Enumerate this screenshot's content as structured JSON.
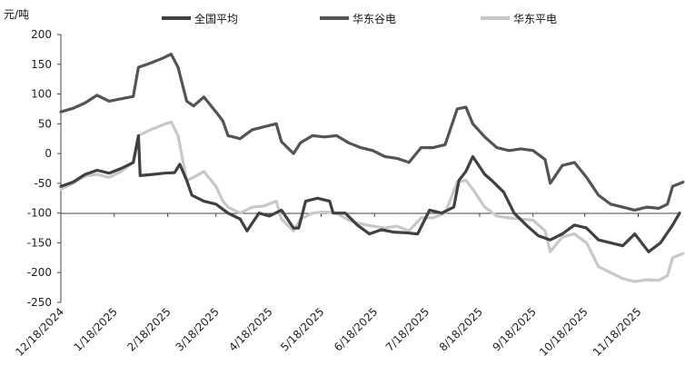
{
  "chart_data": {
    "type": "line",
    "title": "",
    "ylabel": "元/吨",
    "xlabel": "",
    "ylim": [
      -250,
      200
    ],
    "yticks": [
      200,
      150,
      100,
      50,
      0,
      -50,
      -100,
      -150,
      -200,
      -250
    ],
    "xticks": [
      "12/18/2024",
      "1/18/2025",
      "2/18/2025",
      "3/18/2025",
      "4/18/2025",
      "5/18/2025",
      "6/18/2025",
      "7/18/2025",
      "8/18/2025",
      "9/18/2025",
      "10/18/2025",
      "11/18/2025"
    ],
    "legend": {
      "position": "top"
    },
    "grid": false,
    "series": [
      {
        "name": "全国平均",
        "color": "#404040",
        "points": [
          [
            "12/18/2024",
            -55
          ],
          [
            "12/25/2024",
            -48
          ],
          [
            "1/1/2025",
            -35
          ],
          [
            "1/8/2025",
            -28
          ],
          [
            "1/15/2025",
            -33
          ],
          [
            "1/22/2025",
            -25
          ],
          [
            "1/29/2025",
            -15
          ],
          [
            "2/1/2025",
            30
          ],
          [
            "2/2/2025",
            -37
          ],
          [
            "2/9/2025",
            -35
          ],
          [
            "2/16/2025",
            -33
          ],
          [
            "2/22/2025",
            -32
          ],
          [
            "2/25/2025",
            -18
          ],
          [
            "3/1/2025",
            -45
          ],
          [
            "3/4/2025",
            -70
          ],
          [
            "3/11/2025",
            -80
          ],
          [
            "3/18/2025",
            -85
          ],
          [
            "3/25/2025",
            -100
          ],
          [
            "4/1/2025",
            -110
          ],
          [
            "4/5/2025",
            -130
          ],
          [
            "4/12/2025",
            -100
          ],
          [
            "4/18/2025",
            -105
          ],
          [
            "4/25/2025",
            -95
          ],
          [
            "5/2/2025",
            -125
          ],
          [
            "5/5/2025",
            -125
          ],
          [
            "5/9/2025",
            -80
          ],
          [
            "5/16/2025",
            -75
          ],
          [
            "5/23/2025",
            -80
          ],
          [
            "5/25/2025",
            -100
          ],
          [
            "6/1/2025",
            -100
          ],
          [
            "6/8/2025",
            -120
          ],
          [
            "6/15/2025",
            -135
          ],
          [
            "6/22/2025",
            -128
          ],
          [
            "6/29/2025",
            -132
          ],
          [
            "7/6/2025",
            -133
          ],
          [
            "7/13/2025",
            -135
          ],
          [
            "7/20/2025",
            -95
          ],
          [
            "7/27/2025",
            -100
          ],
          [
            "8/3/2025",
            -90
          ],
          [
            "8/6/2025",
            -45
          ],
          [
            "8/10/2025",
            -30
          ],
          [
            "8/14/2025",
            -5
          ],
          [
            "8/21/2025",
            -35
          ],
          [
            "8/25/2025",
            -45
          ],
          [
            "9/1/2025",
            -65
          ],
          [
            "9/7/2025",
            -100
          ],
          [
            "9/14/2025",
            -120
          ],
          [
            "9/21/2025",
            -138
          ],
          [
            "9/28/2025",
            -145
          ],
          [
            "10/5/2025",
            -135
          ],
          [
            "10/12/2025",
            -120
          ],
          [
            "10/19/2025",
            -125
          ],
          [
            "10/26/2025",
            -145
          ],
          [
            "11/2/2025",
            -150
          ],
          [
            "11/9/2025",
            -155
          ],
          [
            "11/16/2025",
            -135
          ],
          [
            "11/20/2025",
            -150
          ],
          [
            "11/24/2025",
            -165
          ],
          [
            "12/1/2025",
            -150
          ],
          [
            "12/8/2025",
            -120
          ],
          [
            "12/12/2025",
            -100
          ]
        ]
      },
      {
        "name": "华东谷电",
        "color": "#545454",
        "points": [
          [
            "12/18/2024",
            70
          ],
          [
            "12/25/2024",
            76
          ],
          [
            "1/1/2025",
            85
          ],
          [
            "1/8/2025",
            98
          ],
          [
            "1/15/2025",
            88
          ],
          [
            "1/22/2025",
            92
          ],
          [
            "1/29/2025",
            96
          ],
          [
            "2/1/2025",
            145
          ],
          [
            "2/8/2025",
            152
          ],
          [
            "2/15/2025",
            160
          ],
          [
            "2/20/2025",
            167
          ],
          [
            "2/24/2025",
            145
          ],
          [
            "3/1/2025",
            88
          ],
          [
            "3/5/2025",
            80
          ],
          [
            "3/11/2025",
            95
          ],
          [
            "3/18/2025",
            70
          ],
          [
            "3/22/2025",
            55
          ],
          [
            "3/25/2025",
            30
          ],
          [
            "4/1/2025",
            25
          ],
          [
            "4/8/2025",
            40
          ],
          [
            "4/15/2025",
            45
          ],
          [
            "4/22/2025",
            50
          ],
          [
            "4/25/2025",
            20
          ],
          [
            "5/2/2025",
            0
          ],
          [
            "5/6/2025",
            18
          ],
          [
            "5/13/2025",
            30
          ],
          [
            "5/20/2025",
            28
          ],
          [
            "5/27/2025",
            30
          ],
          [
            "6/3/2025",
            18
          ],
          [
            "6/10/2025",
            10
          ],
          [
            "6/17/2025",
            5
          ],
          [
            "6/24/2025",
            -5
          ],
          [
            "7/1/2025",
            -8
          ],
          [
            "7/8/2025",
            -15
          ],
          [
            "7/15/2025",
            10
          ],
          [
            "7/22/2025",
            10
          ],
          [
            "7/29/2025",
            15
          ],
          [
            "8/5/2025",
            75
          ],
          [
            "8/10/2025",
            78
          ],
          [
            "8/14/2025",
            50
          ],
          [
            "8/21/2025",
            28
          ],
          [
            "8/28/2025",
            10
          ],
          [
            "9/4/2025",
            5
          ],
          [
            "9/11/2025",
            8
          ],
          [
            "9/18/2025",
            5
          ],
          [
            "9/25/2025",
            -10
          ],
          [
            "9/28/2025",
            -50
          ],
          [
            "10/5/2025",
            -20
          ],
          [
            "10/12/2025",
            -15
          ],
          [
            "10/19/2025",
            -40
          ],
          [
            "10/26/2025",
            -70
          ],
          [
            "11/2/2025",
            -85
          ],
          [
            "11/9/2025",
            -90
          ],
          [
            "11/16/2025",
            -95
          ],
          [
            "11/23/2025",
            -90
          ],
          [
            "11/30/2025",
            -92
          ],
          [
            "12/5/2025",
            -85
          ],
          [
            "12/8/2025",
            -55
          ],
          [
            "12/14/2025",
            -48
          ]
        ]
      },
      {
        "name": "华东平电",
        "color": "#c8c8c8",
        "points": [
          [
            "12/18/2024",
            -60
          ],
          [
            "12/25/2024",
            -50
          ],
          [
            "1/1/2025",
            -38
          ],
          [
            "1/8/2025",
            -35
          ],
          [
            "1/15/2025",
            -40
          ],
          [
            "1/22/2025",
            -30
          ],
          [
            "1/29/2025",
            -15
          ],
          [
            "2/1/2025",
            30
          ],
          [
            "2/8/2025",
            40
          ],
          [
            "2/15/2025",
            48
          ],
          [
            "2/20/2025",
            53
          ],
          [
            "2/24/2025",
            30
          ],
          [
            "3/1/2025",
            -45
          ],
          [
            "3/5/2025",
            -40
          ],
          [
            "3/11/2025",
            -30
          ],
          [
            "3/18/2025",
            -55
          ],
          [
            "3/22/2025",
            -80
          ],
          [
            "3/25/2025",
            -90
          ],
          [
            "4/1/2025",
            -100
          ],
          [
            "4/8/2025",
            -90
          ],
          [
            "4/15/2025",
            -88
          ],
          [
            "4/22/2025",
            -80
          ],
          [
            "4/25/2025",
            -110
          ],
          [
            "5/2/2025",
            -130
          ],
          [
            "5/6/2025",
            -110
          ],
          [
            "5/13/2025",
            -100
          ],
          [
            "5/20/2025",
            -98
          ],
          [
            "5/27/2025",
            -100
          ],
          [
            "6/3/2025",
            -112
          ],
          [
            "6/10/2025",
            -118
          ],
          [
            "6/17/2025",
            -122
          ],
          [
            "6/24/2025",
            -125
          ],
          [
            "7/1/2025",
            -122
          ],
          [
            "7/8/2025",
            -130
          ],
          [
            "7/15/2025",
            -108
          ],
          [
            "7/22/2025",
            -108
          ],
          [
            "7/29/2025",
            -100
          ],
          [
            "8/5/2025",
            -48
          ],
          [
            "8/10/2025",
            -45
          ],
          [
            "8/14/2025",
            -60
          ],
          [
            "8/21/2025",
            -90
          ],
          [
            "8/28/2025",
            -105
          ],
          [
            "9/4/2025",
            -108
          ],
          [
            "9/11/2025",
            -110
          ],
          [
            "9/18/2025",
            -112
          ],
          [
            "9/25/2025",
            -130
          ],
          [
            "9/28/2025",
            -165
          ],
          [
            "10/5/2025",
            -140
          ],
          [
            "10/12/2025",
            -135
          ],
          [
            "10/19/2025",
            -150
          ],
          [
            "10/26/2025",
            -190
          ],
          [
            "11/2/2025",
            -200
          ],
          [
            "11/9/2025",
            -210
          ],
          [
            "11/16/2025",
            -215
          ],
          [
            "11/23/2025",
            -212
          ],
          [
            "11/30/2025",
            -213
          ],
          [
            "12/5/2025",
            -205
          ],
          [
            "12/8/2025",
            -175
          ],
          [
            "12/14/2025",
            -168
          ]
        ]
      }
    ]
  }
}
